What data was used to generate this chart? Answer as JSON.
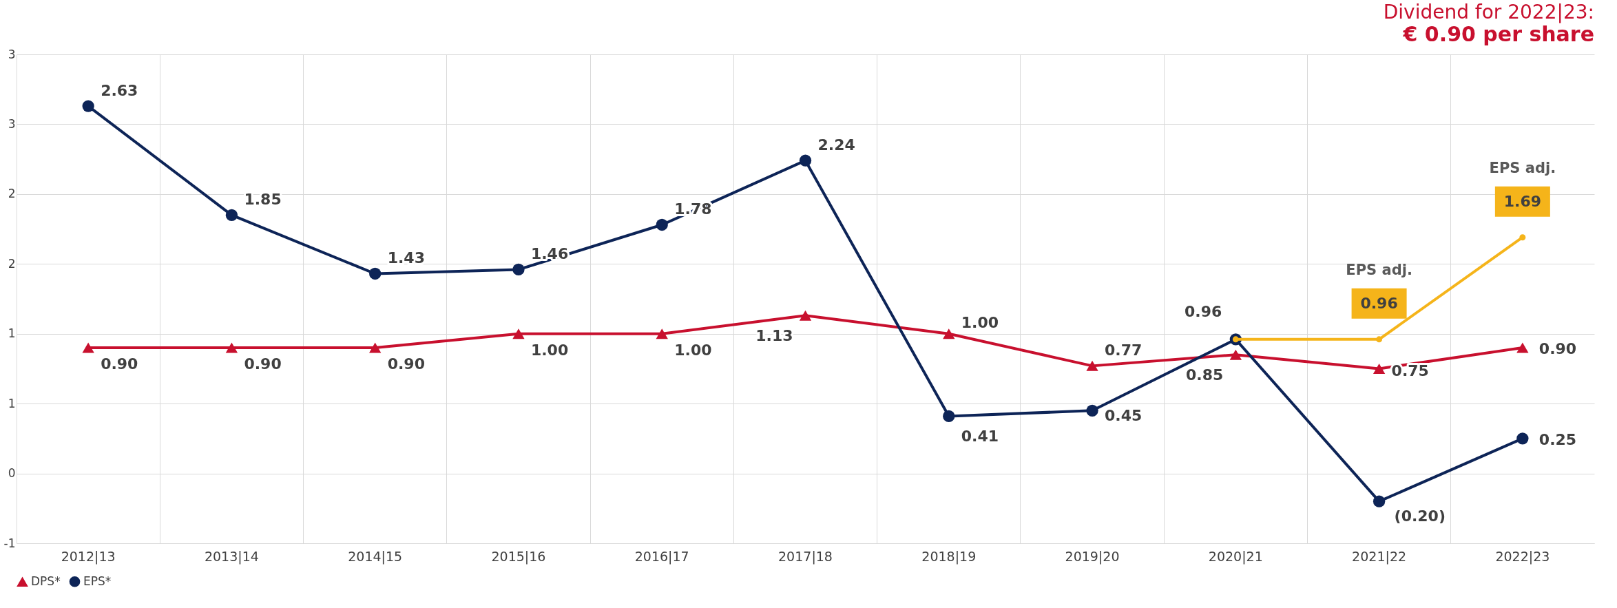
{
  "chart_data": {
    "type": "line",
    "title": "Dividend for 2022|23:",
    "subtitle": "€ 0.90 per share",
    "categories": [
      "2012|13",
      "2013|14",
      "2014|15",
      "2015|16",
      "2016|17",
      "2017|18",
      "2018|19",
      "2019|20",
      "2020|21",
      "2021|22",
      "2022|23"
    ],
    "series": [
      {
        "name": "DPS*",
        "color": "#c8102e",
        "marker": "triangle",
        "values": [
          0.9,
          0.9,
          0.9,
          1.0,
          1.0,
          1.13,
          1.0,
          0.77,
          0.85,
          0.75,
          0.9
        ],
        "value_labels": [
          "0.90",
          "0.90",
          "0.90",
          "1.00",
          "1.00",
          "1.13",
          "1.00",
          "0.77",
          "0.85",
          "0.75",
          "0.90"
        ]
      },
      {
        "name": "EPS*",
        "color": "#0d2457",
        "marker": "circle",
        "values": [
          2.63,
          1.85,
          1.43,
          1.46,
          1.78,
          2.24,
          0.41,
          0.45,
          0.96,
          -0.2,
          0.25
        ],
        "value_labels": [
          "2.63",
          "1.85",
          "1.43",
          "1.46",
          "1.78",
          "2.24",
          "0.41",
          "0.45",
          "0.96",
          "(0.20)",
          "0.25"
        ]
      },
      {
        "color": "#f5b41a",
        "marker": "circle",
        "values": [
          null,
          null,
          null,
          null,
          null,
          null,
          null,
          null,
          0.96,
          0.96,
          1.69
        ],
        "value_labels": [
          null,
          null,
          null,
          null,
          null,
          null,
          null,
          null,
          null,
          "0.96",
          "1.69"
        ]
      }
    ],
    "ylim": [
      -0.5,
      3
    ],
    "yticks": [
      {
        "value": -0.5,
        "label": "-1"
      },
      {
        "value": 0,
        "label": "0"
      },
      {
        "value": 0.5,
        "label": "1"
      },
      {
        "value": 1,
        "label": "1"
      },
      {
        "value": 1.5,
        "label": "2"
      },
      {
        "value": 2,
        "label": "2"
      },
      {
        "value": 2.5,
        "label": "3"
      },
      {
        "value": 3,
        "label": "3"
      }
    ],
    "annotations": [
      "EPS adj.",
      "EPS adj."
    ],
    "grid": true,
    "legend": "bottom",
    "line_style": "solid"
  }
}
